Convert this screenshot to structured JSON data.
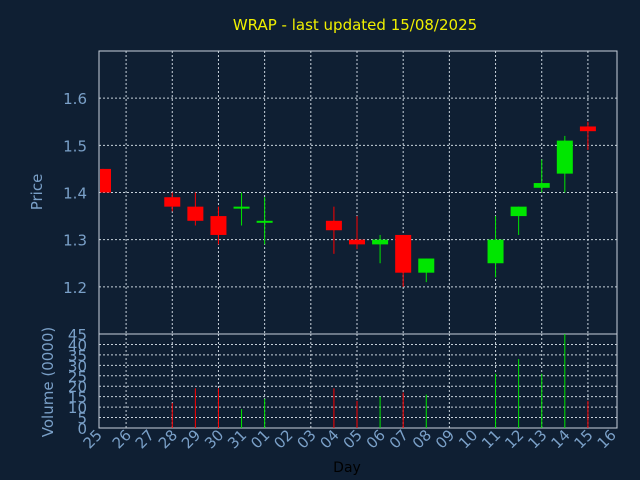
{
  "title": "WRAP - last updated 15/08/2025",
  "colors": {
    "up": "#00e600",
    "down": "#ff0000",
    "title": "#f0f000",
    "axis_text": "#7aa0c8",
    "background": "#0f1f33"
  },
  "chart_data": [
    {
      "type": "candlestick",
      "ylabel": "Price",
      "ylim": [
        1.1,
        1.7
      ],
      "yticks": [
        1.2,
        1.3,
        1.4,
        1.5,
        1.6
      ],
      "grid": true,
      "categories": [
        "25",
        "26",
        "27",
        "28",
        "29",
        "30",
        "31",
        "01",
        "02",
        "03",
        "04",
        "05",
        "06",
        "07",
        "08",
        "09",
        "10",
        "11",
        "12",
        "13",
        "14",
        "15",
        "16"
      ],
      "candles": [
        {
          "day": "25",
          "open": 1.45,
          "close": 1.4,
          "high": 1.45,
          "low": 1.4
        },
        {
          "day": "28",
          "open": 1.39,
          "close": 1.37,
          "high": 1.4,
          "low": 1.36
        },
        {
          "day": "29",
          "open": 1.37,
          "close": 1.34,
          "high": 1.4,
          "low": 1.33
        },
        {
          "day": "30",
          "open": 1.35,
          "close": 1.31,
          "high": 1.37,
          "low": 1.29
        },
        {
          "day": "31",
          "open": 1.37,
          "close": 1.37,
          "high": 1.4,
          "low": 1.33
        },
        {
          "day": "01",
          "open": 1.34,
          "close": 1.34,
          "high": 1.39,
          "low": 1.29
        },
        {
          "day": "04",
          "open": 1.34,
          "close": 1.32,
          "high": 1.37,
          "low": 1.27
        },
        {
          "day": "05",
          "open": 1.3,
          "close": 1.29,
          "high": 1.35,
          "low": 1.28
        },
        {
          "day": "06",
          "open": 1.29,
          "close": 1.3,
          "high": 1.31,
          "low": 1.25
        },
        {
          "day": "07",
          "open": 1.31,
          "close": 1.23,
          "high": 1.31,
          "low": 1.2
        },
        {
          "day": "08",
          "open": 1.23,
          "close": 1.26,
          "high": 1.26,
          "low": 1.21
        },
        {
          "day": "11",
          "open": 1.25,
          "close": 1.3,
          "high": 1.35,
          "low": 1.22
        },
        {
          "day": "12",
          "open": 1.35,
          "close": 1.37,
          "high": 1.37,
          "low": 1.31
        },
        {
          "day": "13",
          "open": 1.41,
          "close": 1.42,
          "high": 1.47,
          "low": 1.4
        },
        {
          "day": "14",
          "open": 1.44,
          "close": 1.51,
          "high": 1.52,
          "low": 1.4
        },
        {
          "day": "15",
          "open": 1.54,
          "close": 1.53,
          "high": 1.55,
          "low": 1.49
        }
      ]
    },
    {
      "type": "bar",
      "ylabel": "Volume (0000)",
      "xlabel": "Day",
      "ylim": [
        0,
        45
      ],
      "yticks": [
        0,
        5,
        10,
        15,
        20,
        25,
        30,
        35,
        40,
        45
      ],
      "grid": true,
      "categories": [
        "25",
        "26",
        "27",
        "28",
        "29",
        "30",
        "31",
        "01",
        "02",
        "03",
        "04",
        "05",
        "06",
        "07",
        "08",
        "09",
        "10",
        "11",
        "12",
        "13",
        "14",
        "15",
        "16"
      ],
      "values": [
        {
          "day": "28",
          "volume": 12,
          "direction": "down"
        },
        {
          "day": "29",
          "volume": 19,
          "direction": "down"
        },
        {
          "day": "30",
          "volume": 19,
          "direction": "down"
        },
        {
          "day": "31",
          "volume": 9,
          "direction": "up"
        },
        {
          "day": "01",
          "volume": 14,
          "direction": "up"
        },
        {
          "day": "04",
          "volume": 19,
          "direction": "down"
        },
        {
          "day": "05",
          "volume": 13,
          "direction": "down"
        },
        {
          "day": "06",
          "volume": 15,
          "direction": "up"
        },
        {
          "day": "07",
          "volume": 17,
          "direction": "down"
        },
        {
          "day": "08",
          "volume": 16,
          "direction": "up"
        },
        {
          "day": "11",
          "volume": 26,
          "direction": "up"
        },
        {
          "day": "12",
          "volume": 33,
          "direction": "up"
        },
        {
          "day": "13",
          "volume": 26,
          "direction": "up"
        },
        {
          "day": "14",
          "volume": 45,
          "direction": "up"
        },
        {
          "day": "15",
          "volume": 13,
          "direction": "down"
        }
      ]
    }
  ]
}
